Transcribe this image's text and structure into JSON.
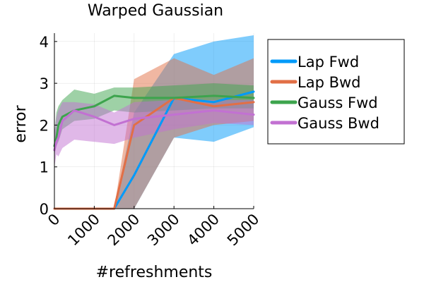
{
  "chart_data": {
    "type": "line",
    "title": "Warped Gaussian",
    "xlabel": "#refreshments",
    "ylabel": "error",
    "xlim": [
      0,
      5000
    ],
    "ylim": [
      0,
      4.2
    ],
    "xticks": [
      0,
      1000,
      2000,
      3000,
      4000,
      5000
    ],
    "xtick_labels": [
      "0",
      "1000",
      "2000",
      "3000",
      "4000",
      "5000"
    ],
    "yticks": [
      0,
      1,
      2,
      3,
      4
    ],
    "ytick_labels": [
      "0",
      "1",
      "2",
      "3",
      "4"
    ],
    "grid": true,
    "legend_position": "outer-right",
    "series": [
      {
        "name": "Lap Fwd",
        "color": "#009af9",
        "x": [
          0,
          50,
          100,
          500,
          1000,
          1500,
          2000,
          3000,
          4000,
          5000
        ],
        "y": [
          0,
          0,
          0,
          0,
          0,
          0,
          0.8,
          2.65,
          2.55,
          2.8
        ],
        "lower": [
          0,
          0,
          0,
          0,
          0,
          0,
          0,
          1.7,
          1.6,
          1.95
        ],
        "upper": [
          0,
          0,
          0,
          0,
          0,
          0,
          2.3,
          3.7,
          4.0,
          4.15
        ]
      },
      {
        "name": "Lap Bwd",
        "color": "#e26f46",
        "x": [
          0,
          50,
          100,
          500,
          1000,
          1500,
          2000,
          3000,
          4000,
          5000
        ],
        "y": [
          0,
          0,
          0,
          0,
          0,
          0,
          2.0,
          2.65,
          2.45,
          2.55
        ],
        "lower": [
          0,
          0,
          0,
          0,
          0,
          0,
          0,
          1.7,
          2.0,
          2.1
        ],
        "upper": [
          0,
          0,
          0,
          0,
          0,
          0,
          3.1,
          3.6,
          3.2,
          3.6
        ]
      },
      {
        "name": "Gauss Fwd",
        "color": "#3da44d",
        "x": [
          0,
          50,
          100,
          200,
          500,
          1000,
          1500,
          2000,
          3000,
          4000,
          5000
        ],
        "y": [
          1.5,
          1.7,
          2.0,
          2.2,
          2.35,
          2.45,
          2.7,
          2.65,
          2.65,
          2.7,
          2.65
        ],
        "lower": [
          1.3,
          1.5,
          1.6,
          1.9,
          2.1,
          2.15,
          2.35,
          2.3,
          2.35,
          2.4,
          2.4
        ],
        "upper": [
          1.8,
          2.3,
          2.45,
          2.6,
          2.85,
          2.75,
          2.9,
          2.9,
          2.95,
          3.0,
          2.95
        ]
      },
      {
        "name": "Gauss Bwd",
        "color": "#c271d2",
        "x": [
          0,
          50,
          100,
          200,
          500,
          1000,
          1500,
          2000,
          3000,
          4000,
          5000
        ],
        "y": [
          1.4,
          1.6,
          1.7,
          2.1,
          2.35,
          2.2,
          2.0,
          2.15,
          2.25,
          2.35,
          2.25
        ],
        "lower": [
          1.0,
          1.3,
          1.25,
          1.45,
          1.65,
          1.6,
          1.55,
          1.7,
          1.9,
          2.05,
          2.0
        ],
        "upper": [
          1.8,
          2.2,
          2.35,
          2.55,
          2.55,
          2.5,
          2.3,
          2.55,
          2.6,
          2.6,
          2.6
        ]
      }
    ]
  }
}
